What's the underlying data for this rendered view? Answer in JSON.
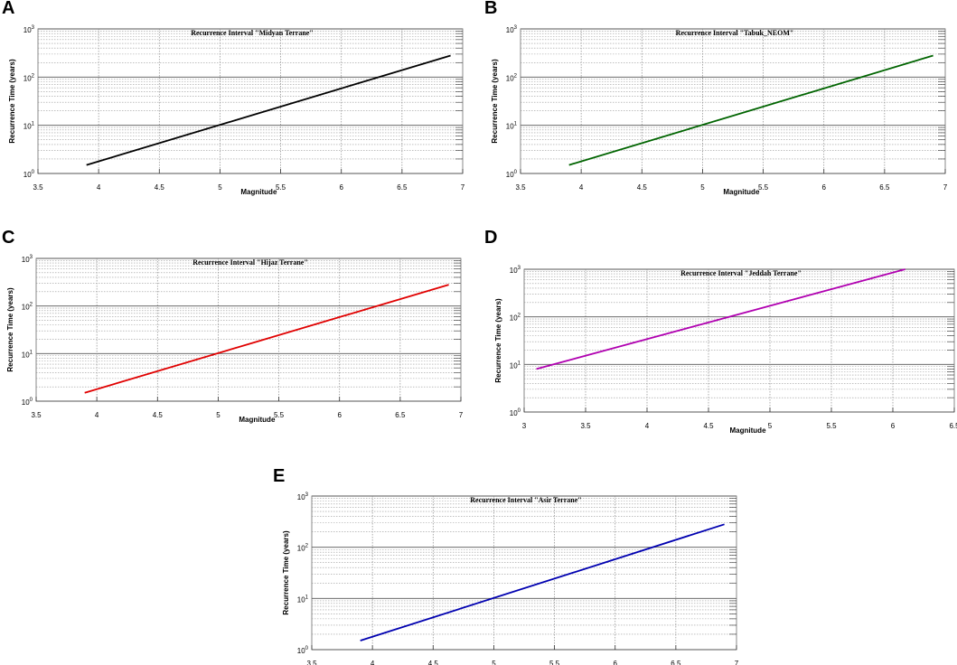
{
  "colors": {
    "series": [
      "#000000",
      "#006400",
      "#e00000",
      "#b000b0",
      "#0000b0"
    ]
  },
  "chart_data": [
    {
      "panel": "A",
      "type": "line",
      "title": "Recurrence Interval \"Midyan Terrane\"",
      "xlabel": "Magnitude",
      "ylabel": "Recurrence Time (years)",
      "xlim": [
        3.5,
        7
      ],
      "ylim": [
        1,
        1000
      ],
      "yscale": "log",
      "xticks": [
        "3.5",
        "4",
        "4.5",
        "5",
        "5.5",
        "6",
        "6.5",
        "7"
      ],
      "yticks": [
        {
          "base": "10",
          "exp": "0"
        },
        {
          "base": "10",
          "exp": "1"
        },
        {
          "base": "10",
          "exp": "2"
        },
        {
          "base": "10",
          "exp": "3"
        }
      ],
      "series": [
        {
          "name": "Midyan Terrane",
          "color": "#000000",
          "x": [
            3.9,
            6.9
          ],
          "y": [
            1.5,
            280
          ]
        }
      ]
    },
    {
      "panel": "B",
      "type": "line",
      "title": "Recurrence Interval \"Tabuk_NEOM\"",
      "xlabel": "Magnitude",
      "ylabel": "Recurrence Time (years)",
      "xlim": [
        3.5,
        7
      ],
      "ylim": [
        1,
        1000
      ],
      "yscale": "log",
      "xticks": [
        "3.5",
        "4",
        "4.5",
        "5",
        "5.5",
        "6",
        "6.5",
        "7"
      ],
      "yticks": [
        {
          "base": "10",
          "exp": "0"
        },
        {
          "base": "10",
          "exp": "1"
        },
        {
          "base": "10",
          "exp": "2"
        },
        {
          "base": "10",
          "exp": "3"
        }
      ],
      "series": [
        {
          "name": "Tabuk_NEOM",
          "color": "#006400",
          "x": [
            3.9,
            6.9
          ],
          "y": [
            1.5,
            280
          ]
        }
      ]
    },
    {
      "panel": "C",
      "type": "line",
      "title": "Recurrence Interval \"Hijaz Terrane\"",
      "xlabel": "Magnitude",
      "ylabel": "Recurrence Time (years)",
      "xlim": [
        3.5,
        7
      ],
      "ylim": [
        1,
        1000
      ],
      "yscale": "log",
      "xticks": [
        "3.5",
        "4",
        "4.5",
        "5",
        "5.5",
        "6",
        "6.5",
        "7"
      ],
      "yticks": [
        {
          "base": "10",
          "exp": "0"
        },
        {
          "base": "10",
          "exp": "1"
        },
        {
          "base": "10",
          "exp": "2"
        },
        {
          "base": "10",
          "exp": "3"
        }
      ],
      "series": [
        {
          "name": "Hijaz Terrane",
          "color": "#e00000",
          "x": [
            3.9,
            6.9
          ],
          "y": [
            1.5,
            280
          ]
        }
      ]
    },
    {
      "panel": "D",
      "type": "line",
      "title": "Recurrence Interval \"Jeddah Terrane\"",
      "xlabel": "Magnitude",
      "ylabel": "Recurrence Time (years)",
      "xlim": [
        3,
        6.5
      ],
      "ylim": [
        1,
        1000
      ],
      "yscale": "log",
      "xticks": [
        "3",
        "3.5",
        "4",
        "4.5",
        "5",
        "5.5",
        "6",
        "6.5"
      ],
      "yticks": [
        {
          "base": "10",
          "exp": "0"
        },
        {
          "base": "10",
          "exp": "1"
        },
        {
          "base": "10",
          "exp": "2"
        },
        {
          "base": "10",
          "exp": "3"
        }
      ],
      "series": [
        {
          "name": "Jeddah Terrane",
          "color": "#b000b0",
          "x": [
            3.1,
            6.1
          ],
          "y": [
            8,
            1000
          ]
        }
      ]
    },
    {
      "panel": "E",
      "type": "line",
      "title": "Recurrence Interval \"Asir Terrane\"",
      "xlabel": "Magnitude",
      "ylabel": "Recurrence Time (years)",
      "xlim": [
        3.5,
        7
      ],
      "ylim": [
        1,
        1000
      ],
      "yscale": "log",
      "xticks": [
        "3.5",
        "4",
        "4.5",
        "5",
        "5.5",
        "6",
        "6.5",
        "7"
      ],
      "yticks": [
        {
          "base": "10",
          "exp": "0"
        },
        {
          "base": "10",
          "exp": "1"
        },
        {
          "base": "10",
          "exp": "2"
        },
        {
          "base": "10",
          "exp": "3"
        }
      ],
      "series": [
        {
          "name": "Asir Terrane",
          "color": "#0000b0",
          "x": [
            3.9,
            6.9
          ],
          "y": [
            1.5,
            280
          ]
        }
      ]
    }
  ]
}
